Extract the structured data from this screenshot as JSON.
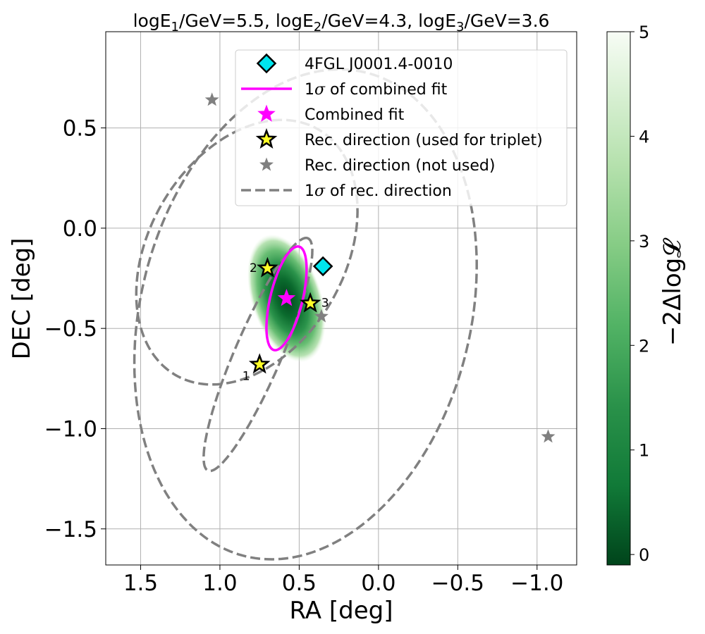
{
  "chart_data": {
    "type": "scatter",
    "title": "logE1/GeV=5.5, logE2/GeV=4.3, logE3/GeV=3.6",
    "title_parts": [
      {
        "text": "logE",
        "sub": "1",
        "tail": "/GeV=5.5, "
      },
      {
        "text": "logE",
        "sub": "2",
        "tail": "/GeV=4.3, "
      },
      {
        "text": "logE",
        "sub": "3",
        "tail": "/GeV=3.6"
      }
    ],
    "xlabel": "RA [deg]",
    "ylabel": "DEC [deg]",
    "xlim": [
      1.72,
      -1.25
    ],
    "ylim": [
      -1.68,
      0.98
    ],
    "x_reversed": true,
    "xticks": [
      1.5,
      1.0,
      0.5,
      0.0,
      -0.5,
      -1.0
    ],
    "xtick_labels": [
      "1.5",
      "1.0",
      "0.5",
      "0.0",
      "−0.5",
      "−1.0"
    ],
    "yticks": [
      0.5,
      0.0,
      -0.5,
      -1.0,
      -1.5
    ],
    "ytick_labels": [
      "0.5",
      "0.0",
      "−0.5",
      "−1.0",
      "−1.5"
    ],
    "grid": true,
    "legend_position": "top-right",
    "colorbar": {
      "label": "−2Δlog𝓛",
      "range": [
        -0.1,
        5.0
      ],
      "ticks": [
        0,
        1,
        2,
        3,
        4,
        5
      ],
      "tick_labels": [
        "0",
        "1",
        "2",
        "3",
        "4",
        "5"
      ],
      "colormap": "Greens_r",
      "color_low": "#00441b",
      "color_high": "#f7fcf5"
    },
    "likelihood_map": {
      "center": [
        0.58,
        -0.35
      ],
      "sigma_major": 0.27,
      "sigma_minor": 0.1,
      "angle_deg": 72
    },
    "source": {
      "name": "4FGL J0001.4-0010",
      "ra": 0.35,
      "dec": -0.19,
      "color": "#00e5ee"
    },
    "combined_fit": {
      "ra": 0.58,
      "dec": -0.35,
      "color": "#ff00ff"
    },
    "combined_fit_ellipse": {
      "center": [
        0.58,
        -0.35
      ],
      "semi_major": 0.27,
      "semi_minor": 0.1,
      "angle_deg": 72,
      "color": "#ff00ff"
    },
    "used_directions": [
      {
        "label": "1",
        "ra": 0.75,
        "dec": -0.68
      },
      {
        "label": "2",
        "ra": 0.7,
        "dec": -0.2
      },
      {
        "label": "3",
        "ra": 0.43,
        "dec": -0.375
      }
    ],
    "unused_directions": [
      {
        "ra": 1.05,
        "dec": 0.64
      },
      {
        "ra": 0.36,
        "dec": -0.44
      },
      {
        "ra": -1.07,
        "dec": -1.04
      }
    ],
    "rec_direction_ellipses": [
      {
        "center": [
          0.46,
          -0.43
        ],
        "semi_major": 1.28,
        "semi_minor": 1.01,
        "angle_deg": 61,
        "color": "#808080"
      },
      {
        "center": [
          0.83,
          -0.12
        ],
        "semi_major": 0.78,
        "semi_minor": 0.56,
        "angle_deg": 40,
        "color": "#808080"
      },
      {
        "center": [
          0.76,
          -0.63
        ],
        "semi_major": 0.66,
        "semi_minor": 0.14,
        "angle_deg": 61,
        "color": "#808080"
      }
    ],
    "legend": [
      {
        "marker": "diamond",
        "label": "4FGL J0001.4-0010"
      },
      {
        "marker": "magenta-line",
        "label_prefix": "1",
        "label_symbol": "σ",
        "label": " of combined fit"
      },
      {
        "marker": "magenta-star",
        "label": "Combined fit"
      },
      {
        "marker": "yellow-star",
        "label": "Rec. direction (used for triplet)"
      },
      {
        "marker": "gray-star",
        "label": "Rec. direction (not used)"
      },
      {
        "marker": "gray-dashed-line",
        "label_prefix": "1",
        "label_symbol": "σ",
        "label": " of rec. direction"
      }
    ],
    "colors": {
      "used_star": "#ffff26",
      "unused_star": "#808080",
      "grid": "#b0b0b0"
    }
  }
}
